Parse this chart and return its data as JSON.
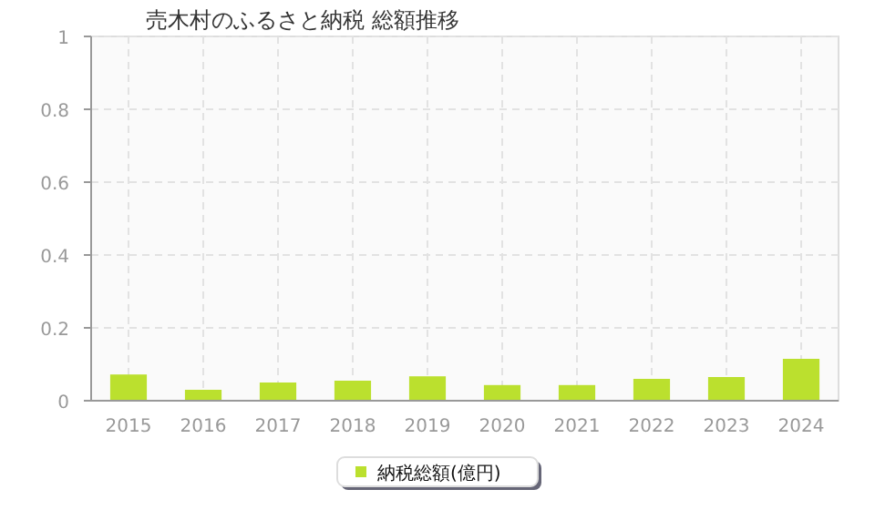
{
  "chart_data": {
    "type": "bar",
    "title": "売木村のふるさと納税 総額推移",
    "categories": [
      "2015",
      "2016",
      "2017",
      "2018",
      "2019",
      "2020",
      "2021",
      "2022",
      "2023",
      "2024"
    ],
    "series": [
      {
        "name": "納税総額(億円)",
        "color": "#bbe02e",
        "values": [
          0.072,
          0.03,
          0.05,
          0.055,
          0.067,
          0.043,
          0.043,
          0.06,
          0.065,
          0.115
        ]
      }
    ],
    "ylim": [
      0,
      1
    ],
    "yticks": [
      0,
      0.2,
      0.4,
      0.6,
      0.8,
      1
    ],
    "grid": true,
    "legend": "bottom"
  }
}
